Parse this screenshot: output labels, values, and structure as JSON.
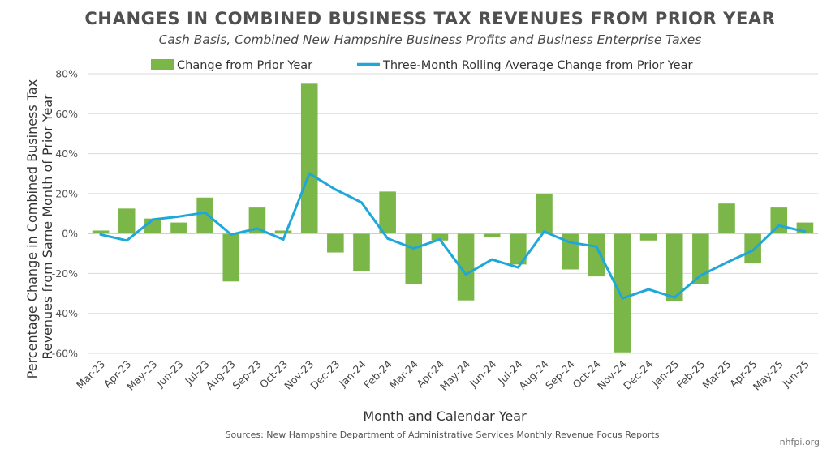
{
  "colors": {
    "bar": "#7ab648",
    "line": "#1fa7d9",
    "gridline": "#d9d9d9",
    "zero_line": "#bfbfbf",
    "title": "#505050"
  },
  "source_note": "Sources: New Hampshire Department of Administrative Services Monthly Revenue Focus Reports",
  "brand": "nhfpi.org",
  "chart_data": {
    "type": "bar",
    "title": "CHANGES IN COMBINED BUSINESS TAX REVENUES FROM PRIOR YEAR",
    "subtitle": "Cash Basis, Combined New Hampshire Business Profits and Business Enterprise Taxes",
    "xlabel": "Month and Calendar Year",
    "ylabel": "Percentage Change in Combined Business Tax Revenues from Same Month of Prior Year",
    "ylim": [
      -60,
      80
    ],
    "yticks": [
      80,
      60,
      40,
      20,
      0,
      -20,
      -40,
      -60
    ],
    "ytick_labels": [
      "80%",
      "60%",
      "40%",
      "20%",
      "0%",
      "-20%",
      "-40%",
      "-60%"
    ],
    "grid": true,
    "legend_position": "top",
    "categories": [
      "Mar-23",
      "Apr-23",
      "May-23",
      "Jun-23",
      "Jul-23",
      "Aug-23",
      "Sep-23",
      "Oct-23",
      "Nov-23",
      "Dec-23",
      "Jan-24",
      "Feb-24",
      "Mar-24",
      "Apr-24",
      "May-24",
      "Jun-24",
      "Jul-24",
      "Aug-24",
      "Sep-24",
      "Oct-24",
      "Nov-24",
      "Dec-24",
      "Jan-25",
      "Feb-25",
      "Mar-25",
      "Apr-25",
      "May-25",
      "Jun-25"
    ],
    "series": [
      {
        "name": "Change from Prior Year",
        "type": "bar",
        "values": [
          1.5,
          12.5,
          7.5,
          5.5,
          18,
          -24,
          13,
          1.5,
          75,
          -9.5,
          -19,
          21,
          -25.5,
          -3.5,
          -33.5,
          -2,
          -15.5,
          20,
          -18,
          -21.5,
          -59.5,
          -3.5,
          -34,
          -25.5,
          15,
          -15,
          13,
          5.5
        ]
      },
      {
        "name": "Three-Month Rolling Average Change from Prior Year",
        "type": "line",
        "values": [
          -0.5,
          -3.5,
          7,
          8.5,
          10.5,
          -0.5,
          2.5,
          -3,
          30,
          22,
          15.5,
          -2.5,
          -7.5,
          -3,
          -20.5,
          -13,
          -17,
          1,
          -4.5,
          -6.5,
          -32.5,
          -28,
          -32,
          -21,
          -14.5,
          -8.5,
          4,
          1
        ]
      }
    ]
  }
}
